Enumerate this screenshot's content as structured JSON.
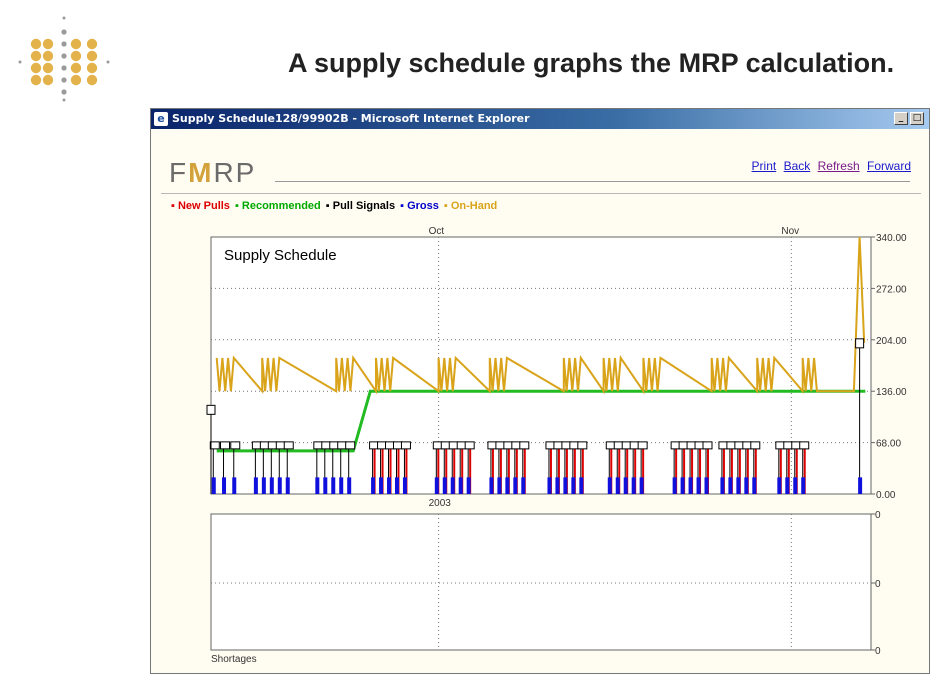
{
  "slide": {
    "title": "A supply schedule graphs the MRP calculation."
  },
  "window": {
    "title": "Supply Schedule128/99902B - Microsoft Internet Explorer",
    "min_glyph": "_",
    "max_glyph": "□"
  },
  "header": {
    "logo_text_left": "F",
    "logo_text_mid": "M",
    "logo_text_right": "RP",
    "links": {
      "print": "Print",
      "back": "Back",
      "refresh": "Refresh",
      "forward": "Forward"
    }
  },
  "legend": [
    {
      "label": "New Pulls",
      "color": "#dd0000"
    },
    {
      "label": "Recommended",
      "color": "#00aa00"
    },
    {
      "label": "Pull Signals",
      "color": "#000000"
    },
    {
      "label": "Gross",
      "color": "#0000cc"
    },
    {
      "label": "On-Hand",
      "color": "#d9a31a"
    }
  ],
  "colors": {
    "new_pulls": "#dd0000",
    "recommended": "#22bb22",
    "pull_signals": "#000000",
    "gross": "#1010dd",
    "on_hand": "#d9a31a"
  },
  "chart_data": [
    {
      "type": "line",
      "title": "Supply Schedule",
      "x_month_labels": [
        {
          "label": "Oct",
          "day": 20
        },
        {
          "label": "Nov",
          "day": 51
        }
      ],
      "x_year_label": "2003",
      "x_range_days": [
        0,
        58
      ],
      "ylim": [
        0,
        340
      ],
      "y_ticks": [
        "340.00",
        "272.00",
        "204.00",
        "136.00",
        "68.00",
        "0.00"
      ],
      "y_tick_values": [
        340,
        272,
        204,
        136,
        68,
        0
      ],
      "grid": true,
      "series": [
        {
          "name": "Recommended",
          "points": [
            [
              0.5,
              57
            ],
            [
              11,
              57
            ],
            [
              12.5,
              57
            ],
            [
              14,
              136
            ],
            [
              57.5,
              136
            ]
          ]
        },
        {
          "name": "On-Hand",
          "sawtooth": {
            "low": 136,
            "high": 180,
            "day_start": 0.5,
            "day_end": 55,
            "cluster_days": [
              0.5,
              4.5,
              11,
              14.5,
              20,
              24.5,
              31,
              34.5,
              38,
              44,
              48,
              52
            ],
            "spike_day": 57,
            "spike_value": 340,
            "end_value": 200
          }
        },
        {
          "name": "Gross",
          "bar_value": 22
        },
        {
          "name": "Pull Signals",
          "bar_value": 65,
          "first_day_value": 112,
          "last_day_value": 200
        },
        {
          "name": "New Pulls",
          "bar_value": 62
        }
      ],
      "pull_days": [
        0.2,
        1.1,
        2.0,
        3.9,
        4.6,
        5.3,
        6.0,
        6.7,
        9.3,
        10.0,
        10.7,
        11.4,
        12.1,
        14.2,
        14.9,
        15.6,
        16.3,
        17.0,
        19.8,
        20.5,
        21.2,
        21.9,
        22.6,
        24.6,
        25.3,
        26.0,
        26.7,
        27.4,
        29.7,
        30.4,
        31.1,
        31.8,
        32.5,
        35.0,
        35.7,
        36.4,
        37.1,
        37.8,
        40.7,
        41.4,
        42.1,
        42.8,
        43.5,
        44.9,
        45.6,
        46.3,
        47.0,
        47.7,
        49.9,
        50.6,
        51.3,
        52.0
      ]
    },
    {
      "type": "line",
      "title": "Shortages",
      "y_ticks": [
        "0",
        "0",
        "0"
      ],
      "series": []
    }
  ]
}
